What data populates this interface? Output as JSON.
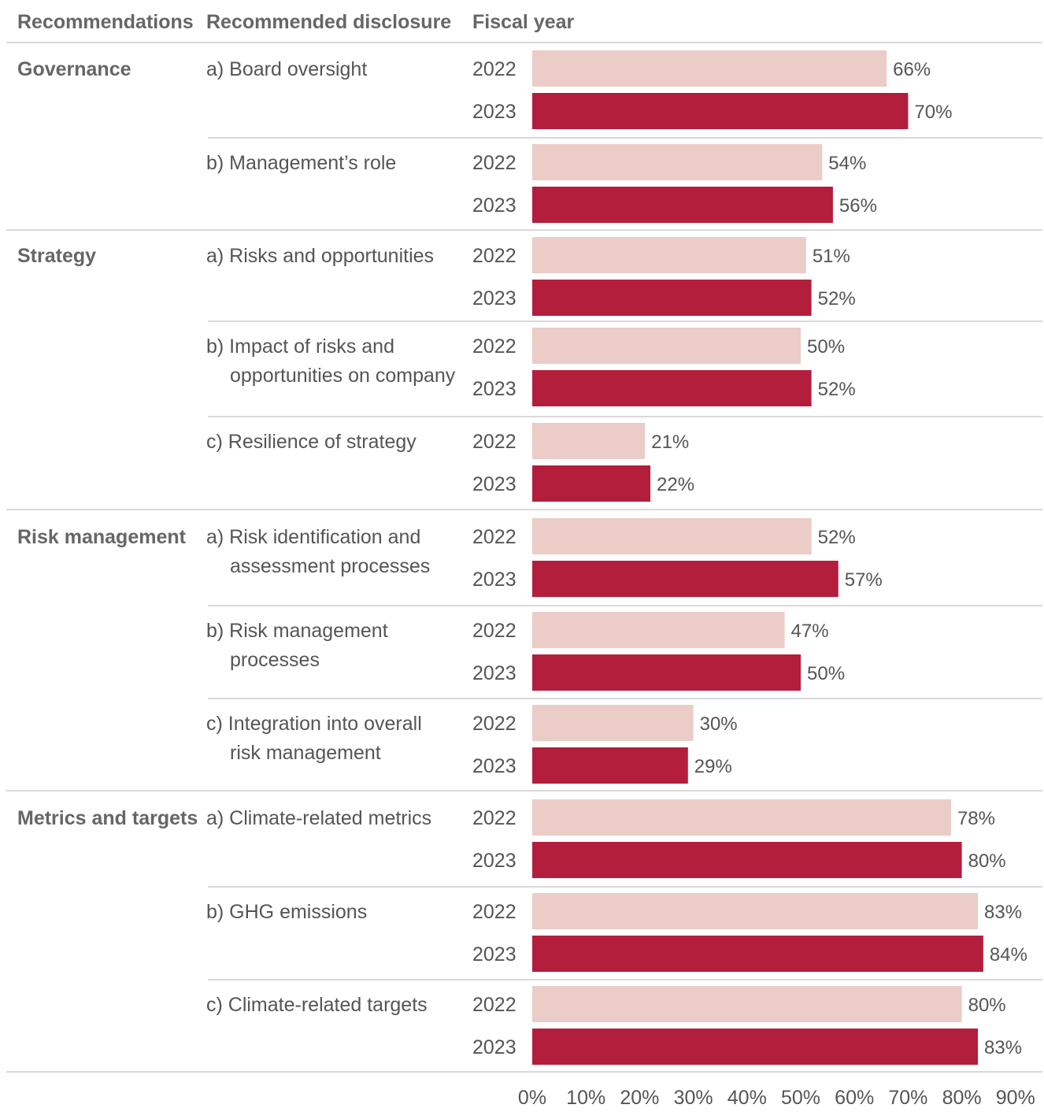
{
  "chart_data": {
    "type": "bar",
    "orientation": "horizontal",
    "headers": {
      "recommendations": "Recommendations",
      "disclosure": "Recommended disclosure",
      "fiscal_year": "Fiscal year"
    },
    "years": [
      "2022",
      "2023"
    ],
    "xlim": [
      0,
      90
    ],
    "x_ticks": [
      "0%",
      "10%",
      "20%",
      "30%",
      "40%",
      "50%",
      "60%",
      "70%",
      "80%",
      "90%"
    ],
    "colors": {
      "2022": "#ebccc6",
      "2023": "#b31e3c",
      "divider": "#d9d9d9",
      "header_text": "#666666",
      "body_text": "#555555"
    },
    "groups": [
      {
        "name": "Governance",
        "disclosures": [
          {
            "label_lines": [
              "a) Board oversight"
            ],
            "values": [
              66,
              70
            ],
            "value_labels": [
              "66%",
              "70%"
            ]
          },
          {
            "label_lines": [
              "b) Management’s role"
            ],
            "values": [
              54,
              56
            ],
            "value_labels": [
              "54%",
              "56%"
            ]
          }
        ]
      },
      {
        "name": "Strategy",
        "disclosures": [
          {
            "label_lines": [
              "a) Risks and opportunities"
            ],
            "values": [
              51,
              52
            ],
            "value_labels": [
              "51%",
              "52%"
            ]
          },
          {
            "label_lines": [
              "b) Impact of risks and",
              "opportunities on company"
            ],
            "values": [
              50,
              52
            ],
            "value_labels": [
              "50%",
              "52%"
            ]
          },
          {
            "label_lines": [
              "c) Resilience of strategy"
            ],
            "values": [
              21,
              22
            ],
            "value_labels": [
              "21%",
              "22%"
            ]
          }
        ]
      },
      {
        "name": "Risk management",
        "disclosures": [
          {
            "label_lines": [
              "a) Risk identification and",
              "assessment processes"
            ],
            "values": [
              52,
              57
            ],
            "value_labels": [
              "52%",
              "57%"
            ]
          },
          {
            "label_lines": [
              "b) Risk management",
              "processes"
            ],
            "values": [
              47,
              50
            ],
            "value_labels": [
              "47%",
              "50%"
            ]
          },
          {
            "label_lines": [
              "c) Integration into overall",
              "risk management"
            ],
            "values": [
              30,
              29
            ],
            "value_labels": [
              "30%",
              "29%"
            ]
          }
        ]
      },
      {
        "name": "Metrics and targets",
        "disclosures": [
          {
            "label_lines": [
              "a) Climate-related metrics"
            ],
            "values": [
              78,
              80
            ],
            "value_labels": [
              "78%",
              "80%"
            ]
          },
          {
            "label_lines": [
              "b) GHG emissions"
            ],
            "values": [
              83,
              84
            ],
            "value_labels": [
              "83%",
              "84%"
            ]
          },
          {
            "label_lines": [
              "c) Climate-related targets"
            ],
            "values": [
              80,
              83
            ],
            "value_labels": [
              "80%",
              "83%"
            ]
          }
        ]
      }
    ]
  }
}
